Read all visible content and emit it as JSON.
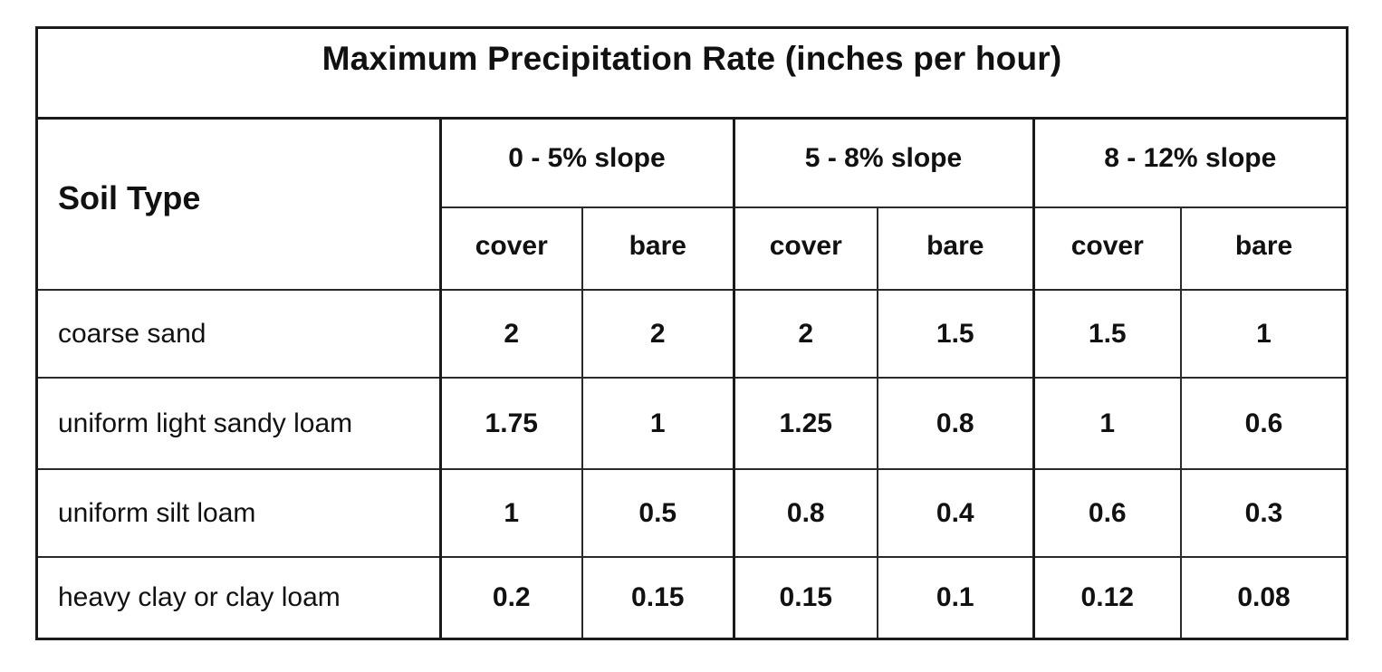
{
  "title": "Maximum Precipitation Rate (inches per hour)",
  "table": {
    "soil_type_header": "Soil Type",
    "slope_groups": [
      {
        "label": "0 - 5% slope"
      },
      {
        "label": "5 - 8% slope"
      },
      {
        "label": "8 - 12% slope"
      }
    ],
    "conditions": [
      "cover",
      "bare",
      "cover",
      "bare",
      "cover",
      "bare"
    ],
    "rows": [
      {
        "soil": "coarse sand",
        "values": [
          "2",
          "2",
          "2",
          "1.5",
          "1.5",
          "1"
        ]
      },
      {
        "soil": "uniform light sandy loam",
        "values": [
          "1.75",
          "1",
          "1.25",
          "0.8",
          "1",
          "0.6"
        ]
      },
      {
        "soil": "uniform silt loam",
        "values": [
          "1",
          "0.5",
          "0.8",
          "0.4",
          "0.6",
          "0.3"
        ]
      },
      {
        "soil": "heavy clay or clay loam",
        "values": [
          "0.2",
          "0.15",
          "0.15",
          "0.1",
          "0.12",
          "0.08"
        ]
      }
    ]
  }
}
